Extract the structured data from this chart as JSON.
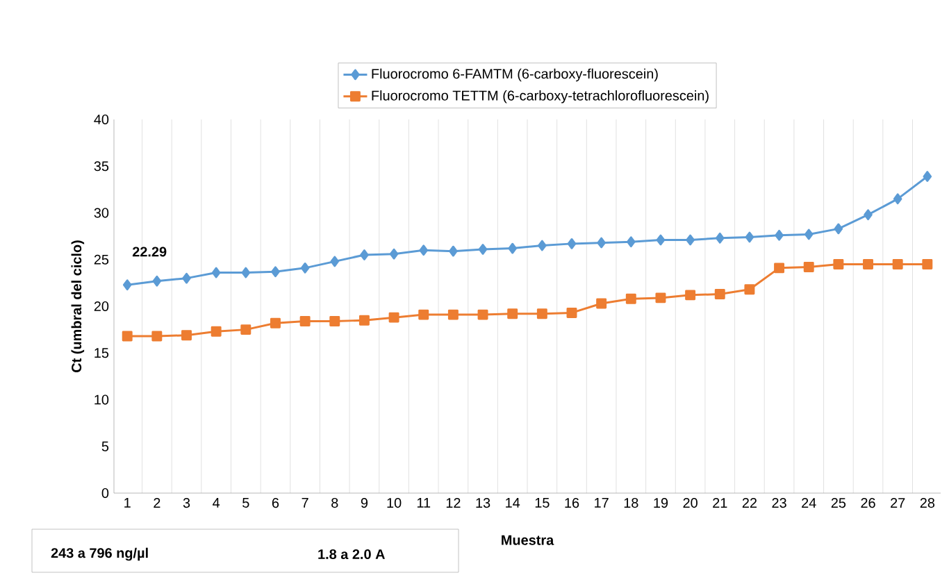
{
  "chart_data": {
    "type": "line",
    "categories": [
      "1",
      "2",
      "3",
      "4",
      "5",
      "6",
      "7",
      "8",
      "9",
      "10",
      "11",
      "12",
      "13",
      "14",
      "15",
      "16",
      "17",
      "18",
      "19",
      "20",
      "21",
      "22",
      "23",
      "24",
      "25",
      "26",
      "27",
      "28"
    ],
    "series": [
      {
        "name": "Fluorocromo 6-FAMTM (6-carboxy-fluorescein)",
        "color": "#5b9bd5",
        "marker": "diamond",
        "values": [
          22.29,
          22.7,
          23.0,
          23.6,
          23.6,
          23.7,
          24.1,
          24.8,
          25.5,
          25.6,
          26.0,
          25.9,
          26.1,
          26.2,
          26.5,
          26.7,
          26.8,
          26.9,
          27.1,
          27.1,
          27.3,
          27.4,
          27.6,
          27.7,
          28.3,
          29.8,
          31.5,
          33.9
        ]
      },
      {
        "name": "Fluorocromo TETTM (6-carboxy-tetrachlorofluorescein)",
        "color": "#ed7d31",
        "marker": "square",
        "values": [
          16.8,
          16.8,
          16.9,
          17.3,
          17.5,
          18.2,
          18.4,
          18.4,
          18.5,
          18.8,
          19.1,
          19.1,
          19.1,
          19.2,
          19.2,
          19.3,
          20.3,
          20.8,
          20.9,
          21.2,
          21.3,
          21.8,
          24.1,
          24.2,
          24.5,
          24.5,
          24.5,
          24.5
        ]
      }
    ],
    "xlabel": "Muestra",
    "ylabel": "Ct (umbral del ciclo)",
    "ylim": [
      0,
      40
    ],
    "yticks": [
      0,
      5,
      10,
      15,
      20,
      25,
      30,
      35,
      40
    ],
    "grid": "x",
    "legend": "top",
    "line_style": "solid",
    "annotations": [
      {
        "text": "22.29",
        "x": "1",
        "y": 22.29
      },
      "243 a 796   ng/µl",
      "1.8 a 2.0   A"
    ]
  }
}
